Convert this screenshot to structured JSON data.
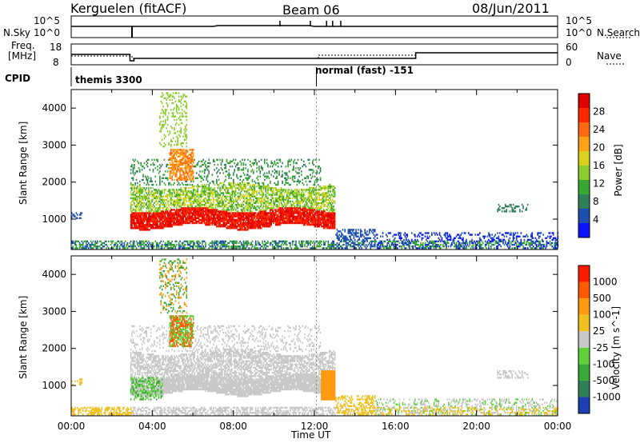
{
  "header": {
    "station": "Kerguelen (fitACF)",
    "beam": "Beam 06",
    "date": "08/Jun/2011"
  },
  "aux_panels": {
    "nsky_label": "N.Sky",
    "nsky_ticks": [
      "10^5",
      "10^0"
    ],
    "nsearch_label": "N.Search",
    "nsearch_ticks": [
      "10^5",
      "10^0"
    ],
    "freq_label_line1": "Freq.",
    "freq_label_line2": "[MHz]",
    "freq_ticks": [
      "18",
      "8"
    ],
    "nave_label": "Nave",
    "nave_ticks": [
      "60",
      "0"
    ],
    "cpid_label": "CPID",
    "cpid_modes": [
      "themis 3300",
      "normal (fast) -151"
    ]
  },
  "chart_data": [
    {
      "type": "heatmap",
      "panel": "power",
      "ylabel": "Slant Range [km]",
      "xlabel": "Time UT",
      "x_range_hours": [
        0,
        24
      ],
      "ylim_km": [
        180,
        4500
      ],
      "x_ticks": [
        "00:00",
        "04:00",
        "08:00",
        "12:00",
        "16:00",
        "20:00",
        "00:00"
      ],
      "y_ticks": [
        1000,
        2000,
        3000,
        4000
      ],
      "colorbar": {
        "label": "Power [dB]",
        "ticks": [
          "28",
          "24",
          "20",
          "16",
          "12",
          "8",
          "4"
        ],
        "range": [
          0,
          30
        ],
        "colors": [
          "#0a14ff",
          "#1e4fb0",
          "#2f7f57",
          "#39a832",
          "#8ccd2b",
          "#d8d21c",
          "#ffa21a",
          "#ff6a10",
          "#ff2a00",
          "#e00000"
        ]
      },
      "features": [
        {
          "description_time_hours": [
            2.9,
            13.0
          ],
          "range_km": [
            700,
            1300
          ],
          "value_db": 28
        },
        {
          "description_time_hours": [
            3.0,
            13.0
          ],
          "range_km": [
            1300,
            2000
          ],
          "value_db": 12
        },
        {
          "description_time_hours": [
            4.8,
            6.0
          ],
          "range_km": [
            2000,
            3000
          ],
          "value_db": 22
        },
        {
          "description_time_hours": [
            14.0,
            24.0
          ],
          "range_km": [
            200,
            600
          ],
          "value_db": 6
        }
      ]
    },
    {
      "type": "heatmap",
      "panel": "velocity",
      "ylabel": "Slant Range [km]",
      "xlabel": "Time UT",
      "x_range_hours": [
        0,
        24
      ],
      "ylim_km": [
        180,
        4500
      ],
      "x_ticks": [
        "00:00",
        "04:00",
        "08:00",
        "12:00",
        "16:00",
        "20:00",
        "00:00"
      ],
      "y_ticks": [
        1000,
        2000,
        3000,
        4000
      ],
      "colorbar": {
        "label": "Velocity [m s^-1]",
        "ticks": [
          "1000",
          "500",
          "100",
          "25",
          "-25",
          "-100",
          "-500",
          "-1000"
        ],
        "colors": [
          "#1e3fb0",
          "#2f7f57",
          "#3aa836",
          "#5fd23a",
          "#c8c8c8",
          "#f0c020",
          "#ff9a10",
          "#ff5a00",
          "#ff1a00"
        ]
      }
    }
  ]
}
